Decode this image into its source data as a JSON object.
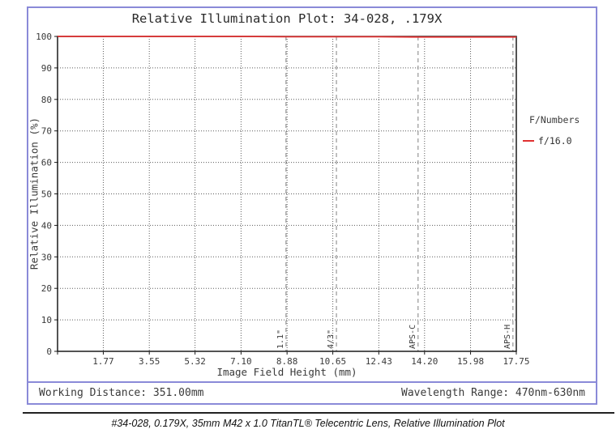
{
  "chart": {
    "title": "Relative Illumination Plot: 34-028, .179X",
    "legend_title": "F/Numbers"
  },
  "chart_data": {
    "type": "line",
    "title": "Relative Illumination Plot: 34-028, .179X",
    "xlabel": "Image Field Height (mm)",
    "ylabel": "Relative Illumination (%)",
    "xlim": [
      0,
      17.75
    ],
    "ylim": [
      0,
      100
    ],
    "grid": true,
    "legend_title": "F/Numbers",
    "legend_position": "right",
    "xticks": [
      {
        "v": 0,
        "label": ""
      },
      {
        "v": 1.77,
        "label": "1.77"
      },
      {
        "v": 3.55,
        "label": "3.55"
      },
      {
        "v": 5.32,
        "label": "5.32"
      },
      {
        "v": 7.1,
        "label": "7.10"
      },
      {
        "v": 8.88,
        "label": "8.88"
      },
      {
        "v": 10.65,
        "label": "10.65"
      },
      {
        "v": 12.43,
        "label": "12.43"
      },
      {
        "v": 14.2,
        "label": "14.20"
      },
      {
        "v": 15.98,
        "label": "15.98"
      },
      {
        "v": 17.75,
        "label": "17.75"
      }
    ],
    "yticks": [
      {
        "v": 0,
        "label": "0"
      },
      {
        "v": 10,
        "label": "10"
      },
      {
        "v": 20,
        "label": "20"
      },
      {
        "v": 30,
        "label": "30"
      },
      {
        "v": 40,
        "label": "40"
      },
      {
        "v": 50,
        "label": "50"
      },
      {
        "v": 60,
        "label": "60"
      },
      {
        "v": 70,
        "label": "70"
      },
      {
        "v": 80,
        "label": "80"
      },
      {
        "v": 90,
        "label": "90"
      },
      {
        "v": 100,
        "label": "100"
      }
    ],
    "series": [
      {
        "name": "f/16.0",
        "color": "#e03131",
        "x": [
          0,
          1.77,
          3.55,
          5.32,
          7.1,
          8.88,
          10.65,
          12.43,
          14.2,
          15.98,
          17.75
        ],
        "y": [
          100,
          100,
          100,
          100,
          100,
          99.9,
          99.9,
          99.9,
          99.8,
          99.8,
          99.8
        ]
      }
    ],
    "reference_lines": [
      {
        "label": "1.1\"",
        "x": 8.84
      },
      {
        "label": "4/3\"",
        "x": 10.79
      },
      {
        "label": "APS-C",
        "x": 13.95
      },
      {
        "label": "APS-H",
        "x": 17.62
      }
    ]
  },
  "footer": {
    "working_distance": "Working Distance: 351.00mm",
    "wavelength_range": "Wavelength Range: 470nm-630nm"
  },
  "caption": "#34-028, 0.179X, 35mm M42 x 1.0 TitanTL® Telecentric Lens, Relative Illumination Plot",
  "colors": {
    "border": "#8a8ad8",
    "line": "#e03131",
    "grid": "#5c5c5c",
    "ref_line": "#808080",
    "frame": "#1a1a1a",
    "rule": "#222222",
    "text": "#333333"
  }
}
